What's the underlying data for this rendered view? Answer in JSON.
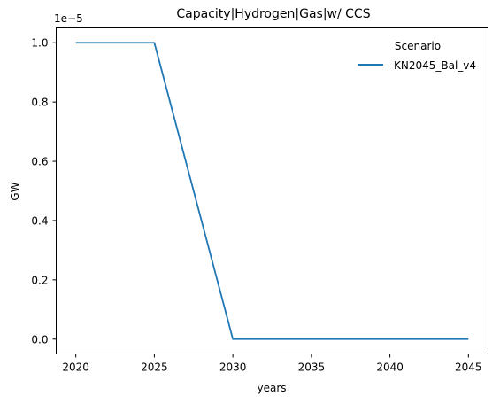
{
  "chart_data": {
    "type": "line",
    "title": "Capacity|Hydrogen|Gas|w/ CCS",
    "xlabel": "years",
    "ylabel": "GW",
    "y_offset_label": "1e−5",
    "x": [
      2020,
      2025,
      2030,
      2035,
      2040,
      2045
    ],
    "series": [
      {
        "name": "KN2045_Bal_v4",
        "color": "#1f77b4",
        "values": [
          1e-05,
          1e-05,
          0,
          0,
          0,
          0
        ]
      }
    ],
    "xticks": [
      "2020",
      "2025",
      "2030",
      "2035",
      "2040",
      "2045"
    ],
    "yticks": [
      "0.0",
      "0.2",
      "0.4",
      "0.6",
      "0.8",
      "1.0"
    ],
    "ytick_values": [
      0.0,
      0.2,
      0.4,
      0.6,
      0.8,
      1.0
    ],
    "y_scale_multiplier": 1e-05,
    "xlim": [
      2018.75,
      2046.25
    ],
    "ylim_scaled": [
      -0.05,
      1.05
    ],
    "grid": false,
    "legend": {
      "title": "Scenario",
      "placement": "upper-right"
    }
  }
}
